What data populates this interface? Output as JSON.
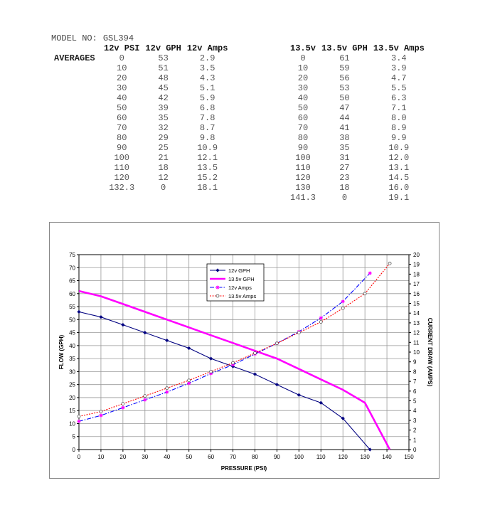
{
  "header": {
    "model_label": "MODEL NO:",
    "model_value": "GSL394",
    "averages_label": "AVERAGES"
  },
  "table12": {
    "headers": [
      "12v PSI",
      "12v GPH",
      "12v Amps"
    ],
    "rows": [
      [
        "0",
        "53",
        "2.9"
      ],
      [
        "10",
        "51",
        "3.5"
      ],
      [
        "20",
        "48",
        "4.3"
      ],
      [
        "30",
        "45",
        "5.1"
      ],
      [
        "40",
        "42",
        "5.9"
      ],
      [
        "50",
        "39",
        "6.8"
      ],
      [
        "60",
        "35",
        "7.8"
      ],
      [
        "70",
        "32",
        "8.7"
      ],
      [
        "80",
        "29",
        "9.8"
      ],
      [
        "90",
        "25",
        "10.9"
      ],
      [
        "100",
        "21",
        "12.1"
      ],
      [
        "110",
        "18",
        "13.5"
      ],
      [
        "120",
        "12",
        "15.2"
      ],
      [
        "132.3",
        "0",
        "18.1"
      ]
    ]
  },
  "table135": {
    "headers": [
      "13.5v",
      "13.5v GPH",
      "13.5v Amps"
    ],
    "rows": [
      [
        "0",
        "61",
        "3.4"
      ],
      [
        "10",
        "59",
        "3.9"
      ],
      [
        "20",
        "56",
        "4.7"
      ],
      [
        "30",
        "53",
        "5.5"
      ],
      [
        "40",
        "50",
        "6.3"
      ],
      [
        "50",
        "47",
        "7.1"
      ],
      [
        "60",
        "44",
        "8.0"
      ],
      [
        "70",
        "41",
        "8.9"
      ],
      [
        "80",
        "38",
        "9.9"
      ],
      [
        "90",
        "35",
        "10.9"
      ],
      [
        "100",
        "31",
        "12.0"
      ],
      [
        "110",
        "27",
        "13.1"
      ],
      [
        "120",
        "23",
        "14.5"
      ],
      [
        "130",
        "18",
        "16.0"
      ],
      [
        "141.3",
        "0",
        "19.1"
      ]
    ]
  },
  "chart_data": {
    "type": "line",
    "title": "",
    "xlabel": "PRESSURE (PSI)",
    "ylabel": "FLOW (GPH)",
    "y2label": "CURRENT DRAW (AMPS)",
    "xlim": [
      0,
      150
    ],
    "ylim": [
      0,
      75
    ],
    "y2lim": [
      0,
      20
    ],
    "xticks": [
      0,
      10,
      20,
      30,
      40,
      50,
      60,
      70,
      80,
      90,
      100,
      110,
      120,
      130,
      140,
      150
    ],
    "yticks": [
      0,
      5,
      10,
      15,
      20,
      25,
      30,
      35,
      40,
      45,
      50,
      55,
      60,
      65,
      70,
      75
    ],
    "y2ticks": [
      0,
      1,
      2,
      3,
      4,
      5,
      6,
      7,
      8,
      9,
      10,
      11,
      12,
      13,
      14,
      15,
      16,
      17,
      18,
      19,
      20
    ],
    "grid": true,
    "legend_position": "top-center",
    "series": [
      {
        "name": "12v GPH",
        "axis": "left",
        "color": "#000080",
        "style": "solid",
        "marker": "diamond",
        "x": [
          0,
          10,
          20,
          30,
          40,
          50,
          60,
          70,
          80,
          90,
          100,
          110,
          120,
          132.3
        ],
        "y": [
          53,
          51,
          48,
          45,
          42,
          39,
          35,
          32,
          29,
          25,
          21,
          18,
          12,
          0
        ]
      },
      {
        "name": "13.5v GPH",
        "axis": "left",
        "color": "#ff00ff",
        "style": "solid-thick",
        "marker": "none",
        "x": [
          0,
          10,
          20,
          30,
          40,
          50,
          60,
          70,
          80,
          90,
          100,
          110,
          120,
          130,
          141.3
        ],
        "y": [
          61,
          59,
          56,
          53,
          50,
          47,
          44,
          41,
          38,
          35,
          31,
          27,
          23,
          18,
          0
        ]
      },
      {
        "name": "12v Amps",
        "axis": "right",
        "color": "#0000ff",
        "style": "dashdot",
        "marker": "star",
        "x": [
          0,
          10,
          20,
          30,
          40,
          50,
          60,
          70,
          80,
          90,
          100,
          110,
          120,
          132.3
        ],
        "y": [
          2.9,
          3.5,
          4.3,
          5.1,
          5.9,
          6.8,
          7.8,
          8.7,
          9.8,
          10.9,
          12.1,
          13.5,
          15.2,
          18.1
        ]
      },
      {
        "name": "13.5v Amps",
        "axis": "right",
        "color": "#ff0000",
        "style": "dotted",
        "marker": "circle",
        "x": [
          0,
          10,
          20,
          30,
          40,
          50,
          60,
          70,
          80,
          90,
          100,
          110,
          120,
          130,
          141.3
        ],
        "y": [
          3.4,
          3.9,
          4.7,
          5.5,
          6.3,
          7.1,
          8.0,
          8.9,
          9.9,
          10.9,
          12.0,
          13.1,
          14.5,
          16.0,
          19.1
        ]
      }
    ]
  }
}
